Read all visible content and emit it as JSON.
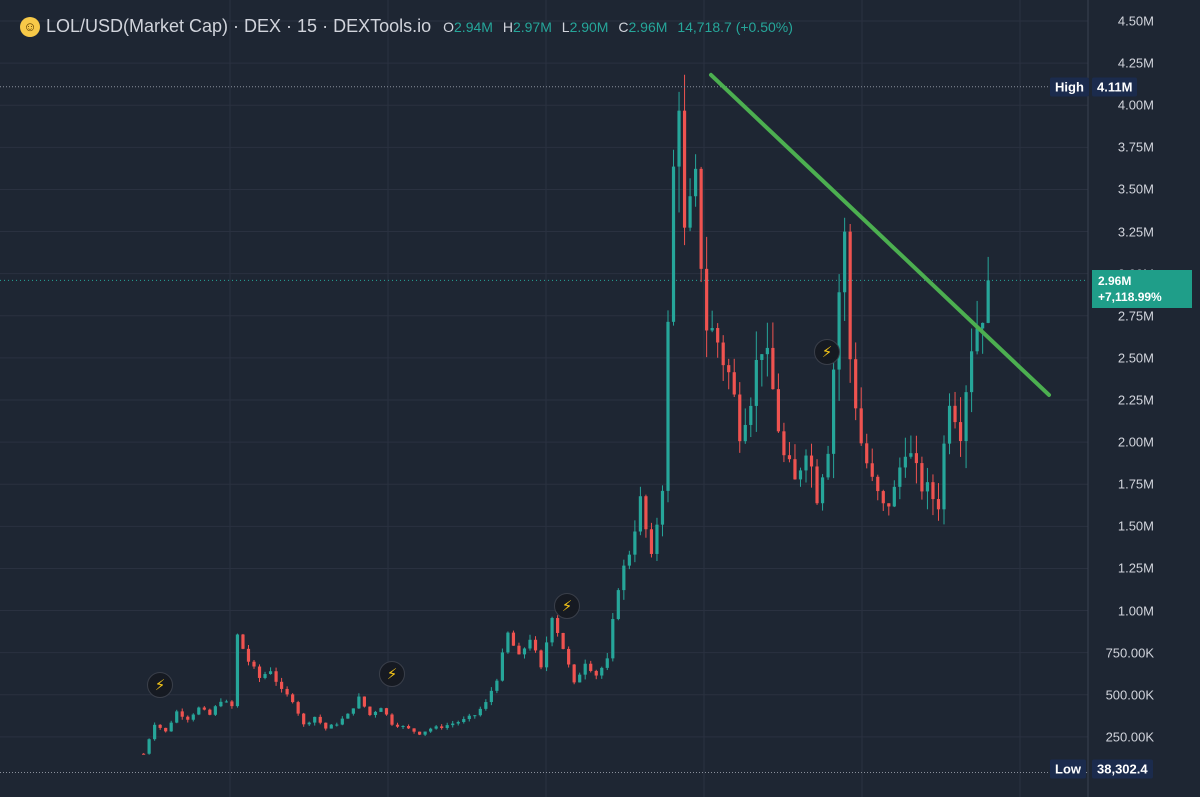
{
  "legend": {
    "title": "LOL/USD(Market Cap) · DEX · 15 · DEXTools.io",
    "open_key": "O",
    "open": "2.94M",
    "high_key": "H",
    "high": "2.97M",
    "low_key": "L",
    "low": "2.90M",
    "close_key": "C",
    "close": "2.96M",
    "change": "14,718.7 (+0.50%)"
  },
  "yaxis": {
    "ticks": [
      "4.50M",
      "4.25M",
      "4.00M",
      "3.75M",
      "3.50M",
      "3.25M",
      "3.00M",
      "2.75M",
      "2.50M",
      "2.25M",
      "2.00M",
      "1.75M",
      "1.50M",
      "1.25M",
      "1.00M",
      "750.00K",
      "500.00K",
      "250.00K"
    ]
  },
  "markers": {
    "high_label": "High",
    "high_value": "4.11M",
    "low_label": "Low",
    "low_value": "38,302.4",
    "current_price": "2.96M",
    "current_change": "+7,118.99%"
  },
  "icons": [
    "lightning-icon",
    "lightning-icon",
    "lightning-icon",
    "lightning-icon"
  ],
  "colors": {
    "up": "#26a69a",
    "down": "#ef5350",
    "trendline": "#4caf50",
    "background": "#1e2633"
  },
  "chart_data": {
    "type": "candlestick",
    "ylim": [
      0,
      4600000
    ],
    "y_tick_values": [
      4500000,
      4250000,
      4000000,
      3750000,
      3500000,
      3250000,
      3000000,
      2750000,
      2500000,
      2250000,
      2000000,
      1750000,
      1500000,
      1250000,
      1000000,
      750000,
      500000,
      250000
    ],
    "high": 4110000,
    "low": 38302.4,
    "last_close": 2960000,
    "trendline": {
      "start_value": 4180000,
      "end_value": 2280000
    },
    "close_path": [
      [
        0,
        150000
      ],
      [
        2,
        330000
      ],
      [
        4,
        280000
      ],
      [
        6,
        400000
      ],
      [
        8,
        360000
      ],
      [
        10,
        420000
      ],
      [
        12,
        380000
      ],
      [
        14,
        470000
      ],
      [
        16,
        430000
      ],
      [
        17,
        850000
      ],
      [
        19,
        700000
      ],
      [
        21,
        600000
      ],
      [
        23,
        650000
      ],
      [
        25,
        520000
      ],
      [
        27,
        470000
      ],
      [
        29,
        320000
      ],
      [
        31,
        370000
      ],
      [
        33,
        300000
      ],
      [
        35,
        330000
      ],
      [
        37,
        380000
      ],
      [
        39,
        480000
      ],
      [
        41,
        380000
      ],
      [
        43,
        430000
      ],
      [
        45,
        330000
      ],
      [
        47,
        310000
      ],
      [
        50,
        270000
      ],
      [
        52,
        300000
      ],
      [
        54,
        310000
      ],
      [
        56,
        330000
      ],
      [
        58,
        350000
      ],
      [
        60,
        380000
      ],
      [
        62,
        450000
      ],
      [
        64,
        600000
      ],
      [
        66,
        860000
      ],
      [
        68,
        720000
      ],
      [
        70,
        840000
      ],
      [
        72,
        650000
      ],
      [
        74,
        980000
      ],
      [
        76,
        780000
      ],
      [
        78,
        560000
      ],
      [
        80,
        700000
      ],
      [
        82,
        620000
      ],
      [
        84,
        700000
      ],
      [
        86,
        1150000
      ],
      [
        88,
        1350000
      ],
      [
        90,
        1650000
      ],
      [
        92,
        1300000
      ],
      [
        94,
        1750000
      ],
      [
        96,
        3600000
      ],
      [
        97,
        4100000
      ],
      [
        98,
        3200000
      ],
      [
        100,
        3500000
      ],
      [
        102,
        2700000
      ],
      [
        104,
        2600000
      ],
      [
        106,
        2400000
      ],
      [
        108,
        2100000
      ],
      [
        110,
        2300000
      ],
      [
        112,
        2600000
      ],
      [
        114,
        2300000
      ],
      [
        116,
        1900000
      ],
      [
        118,
        1750000
      ],
      [
        120,
        2000000
      ],
      [
        122,
        1700000
      ],
      [
        124,
        2000000
      ],
      [
        126,
        2900000
      ],
      [
        127,
        3200000
      ],
      [
        128,
        2500000
      ],
      [
        130,
        2000000
      ],
      [
        132,
        1750000
      ],
      [
        134,
        1600000
      ],
      [
        136,
        1700000
      ],
      [
        138,
        2000000
      ],
      [
        140,
        1800000
      ],
      [
        142,
        1700000
      ],
      [
        144,
        1650000
      ],
      [
        146,
        2300000
      ],
      [
        148,
        2100000
      ],
      [
        150,
        2600000
      ],
      [
        152,
        2800000
      ],
      [
        153,
        2960000
      ]
    ]
  }
}
